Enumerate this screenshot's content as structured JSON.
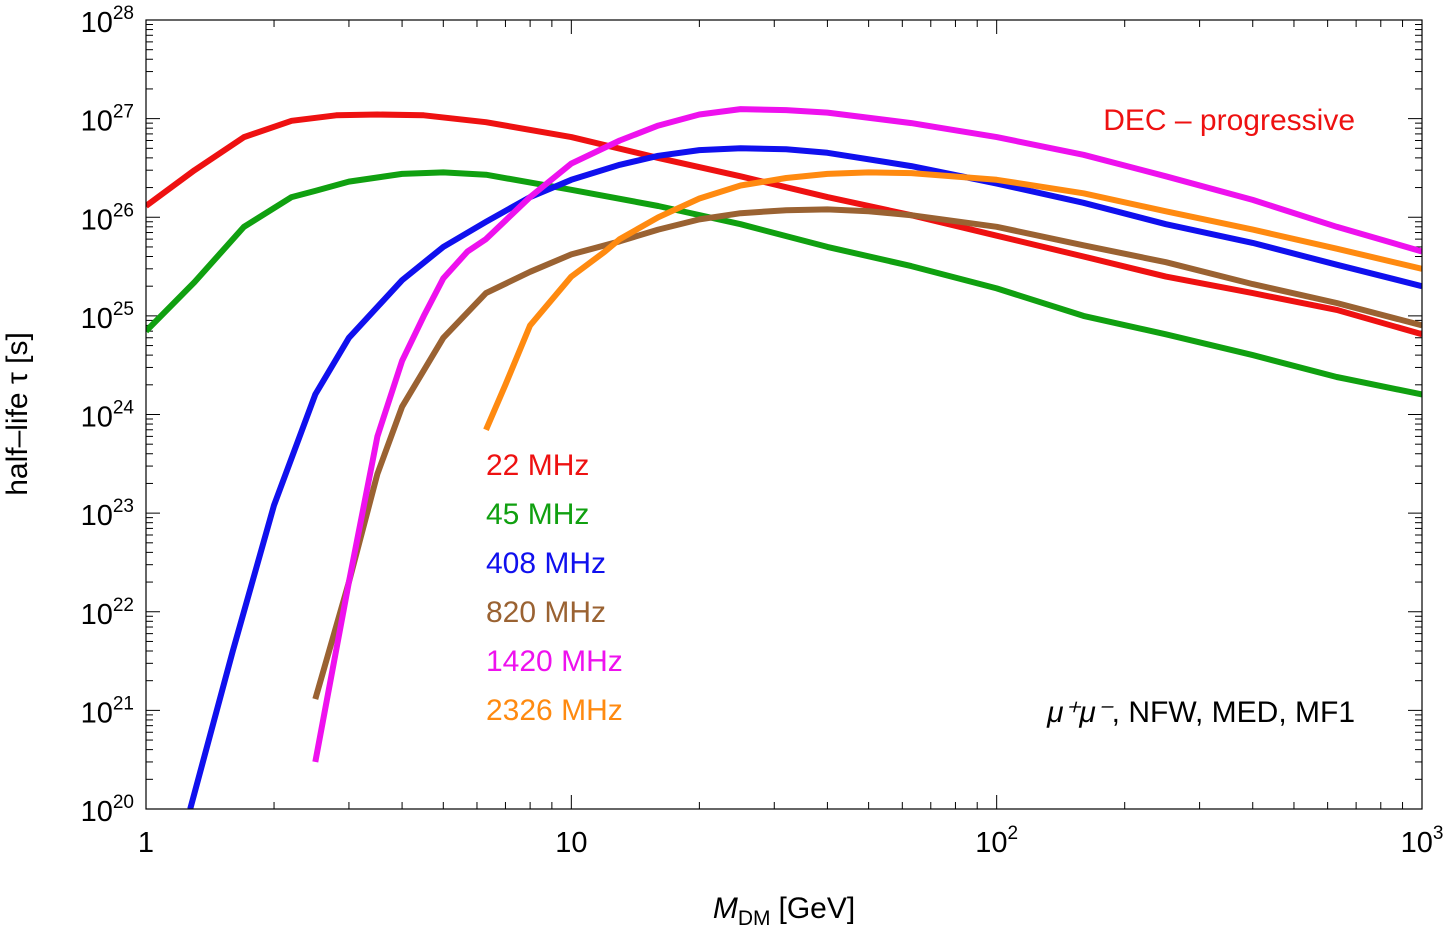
{
  "chart_data": {
    "type": "line",
    "title": "",
    "xlabel": "M",
    "xlabel_sub": "DM",
    "xlabel_unit": "[GeV]",
    "ylabel": "half–life τ [s]",
    "xscale": "log",
    "yscale": "log",
    "xlim": [
      1,
      1000
    ],
    "ylim": [
      1e+20,
      1e+28
    ],
    "x_ticks": [
      {
        "base": "1",
        "exp": ""
      },
      {
        "base": "10",
        "exp": ""
      },
      {
        "base": "10",
        "exp": "2"
      },
      {
        "base": "10",
        "exp": "3"
      }
    ],
    "y_ticks": [
      {
        "base": "10",
        "exp": "20"
      },
      {
        "base": "10",
        "exp": "21"
      },
      {
        "base": "10",
        "exp": "22"
      },
      {
        "base": "10",
        "exp": "23"
      },
      {
        "base": "10",
        "exp": "24"
      },
      {
        "base": "10",
        "exp": "25"
      },
      {
        "base": "10",
        "exp": "26"
      },
      {
        "base": "10",
        "exp": "27"
      },
      {
        "base": "10",
        "exp": "28"
      }
    ],
    "annotations": {
      "top_right": "DEC – progressive",
      "top_right_color": "#ee1111",
      "bottom_right_math": "μ⁺μ⁻",
      "bottom_right_text": ", NFW, MED, MF1"
    },
    "legend_position": "center-left",
    "series": [
      {
        "name": "22 MHz",
        "color": "#ee1111",
        "x": [
          1,
          1.3,
          1.7,
          2.2,
          2.8,
          3.5,
          4.5,
          6.3,
          10,
          16,
          25,
          40,
          63,
          100,
          160,
          250,
          400,
          630,
          1000
        ],
        "y": [
          1.3e+26,
          3e+26,
          6.5e+26,
          9.5e+26,
          1.08e+27,
          1.1e+27,
          1.08e+27,
          9.2e+26,
          6.5e+26,
          4e+26,
          2.6e+26,
          1.6e+26,
          1.05e+26,
          6.5e+25,
          4e+25,
          2.5e+25,
          1.7e+25,
          1.15e+25,
          6.5e+24
        ]
      },
      {
        "name": "45 MHz",
        "color": "#10a010",
        "x": [
          1,
          1.3,
          1.7,
          2.2,
          2.5,
          3,
          4,
          5,
          6.3,
          10,
          16,
          25,
          40,
          63,
          100,
          160,
          250,
          400,
          630,
          1000
        ],
        "y": [
          7e+24,
          2.2e+25,
          8e+25,
          1.6e+26,
          1.85e+26,
          2.3e+26,
          2.75e+26,
          2.85e+26,
          2.7e+26,
          1.9e+26,
          1.3e+26,
          8.5e+25,
          5e+25,
          3.2e+25,
          1.9e+25,
          1e+25,
          6.5e+24,
          4e+24,
          2.4e+24,
          1.6e+24
        ]
      },
      {
        "name": "408 MHz",
        "color": "#1010ee",
        "x": [
          1.27,
          1.6,
          2,
          2.5,
          3,
          4,
          5,
          6.3,
          8,
          10,
          13,
          16,
          20,
          25,
          32,
          40,
          63,
          100,
          160,
          250,
          400,
          630,
          1000
        ],
        "y": [
          1e+20,
          4e+21,
          1.2e+23,
          1.6e+24,
          6e+24,
          2.3e+25,
          5e+25,
          9e+25,
          1.6e+26,
          2.4e+26,
          3.4e+26,
          4.2e+26,
          4.8e+26,
          5e+26,
          4.9e+26,
          4.5e+26,
          3.3e+26,
          2.2e+26,
          1.4e+26,
          8.5e+25,
          5.5e+25,
          3.3e+25,
          2e+25
        ]
      },
      {
        "name": "820 MHz",
        "color": "#9a6232",
        "x": [
          2.5,
          3,
          3.5,
          4,
          5,
          6.3,
          8,
          10,
          13,
          16,
          20,
          25,
          32,
          40,
          50,
          63,
          100,
          160,
          250,
          400,
          630,
          1000
        ],
        "y": [
          1.3e+21,
          2e+22,
          2.5e+23,
          1.2e+24,
          6e+24,
          1.7e+25,
          2.8e+25,
          4.2e+25,
          5.7e+25,
          7.5e+25,
          9.5e+25,
          1.1e+26,
          1.18e+26,
          1.2e+26,
          1.15e+26,
          1.05e+26,
          8e+25,
          5.2e+25,
          3.5e+25,
          2.1e+25,
          1.35e+25,
          8e+24
        ]
      },
      {
        "name": "1420 MHz",
        "color": "#ee11ee",
        "x": [
          2.5,
          3,
          3.5,
          4,
          4.5,
          5,
          5.7,
          6.3,
          8,
          10,
          13,
          16,
          20,
          25,
          32,
          40,
          63,
          100,
          160,
          250,
          400,
          630,
          1000
        ],
        "y": [
          3e+20,
          2e+22,
          6e+23,
          3.5e+24,
          1e+25,
          2.4e+25,
          4.5e+25,
          6e+25,
          1.6e+26,
          3.5e+26,
          6e+26,
          8.5e+26,
          1.1e+27,
          1.25e+27,
          1.22e+27,
          1.15e+27,
          9e+26,
          6.5e+26,
          4.3e+26,
          2.6e+26,
          1.5e+26,
          8e+25,
          4.5e+25
        ]
      },
      {
        "name": "2326 MHz",
        "color": "#ff8a10",
        "x": [
          6.3,
          7,
          8,
          10,
          12,
          13,
          16,
          20,
          25,
          32,
          40,
          50,
          63,
          100,
          160,
          250,
          400,
          630,
          1000
        ],
        "y": [
          7e+23,
          2e+24,
          8e+24,
          2.5e+25,
          4.5e+25,
          6e+25,
          1e+26,
          1.55e+26,
          2.1e+26,
          2.5e+26,
          2.75e+26,
          2.85e+26,
          2.8e+26,
          2.4e+26,
          1.75e+26,
          1.15e+26,
          7.5e+25,
          4.8e+25,
          3e+25
        ]
      }
    ]
  }
}
